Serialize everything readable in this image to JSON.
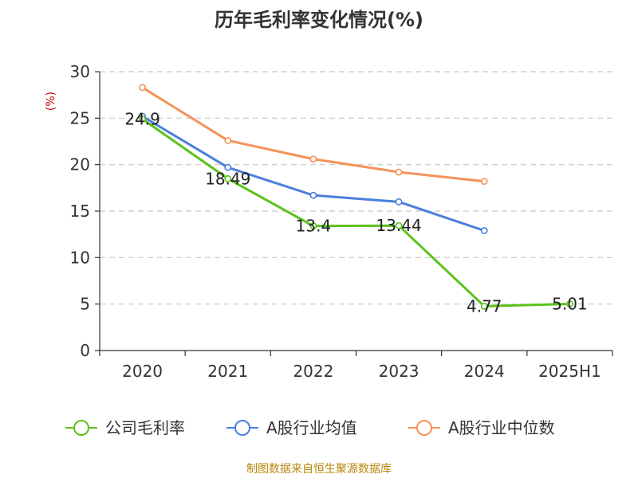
{
  "chart_data": {
    "type": "line",
    "title": "历年毛利率变化情况(%)",
    "y_unit": "(%)",
    "categories": [
      "2020",
      "2021",
      "2022",
      "2023",
      "2024",
      "2025H1"
    ],
    "ylim": [
      0,
      30
    ],
    "yticks": [
      0,
      5,
      10,
      15,
      20,
      25,
      30
    ],
    "grid": true,
    "legend_position": "bottom",
    "series": [
      {
        "name": "公司毛利率",
        "color": "#5cc21c",
        "values": [
          24.9,
          18.49,
          13.4,
          13.44,
          4.77,
          5.01
        ],
        "labels": [
          "24.9",
          "18.49",
          "13.4",
          "13.44",
          "4.77",
          "5.01"
        ]
      },
      {
        "name": "A股行业均值",
        "color": "#4a7fdc",
        "values": [
          25.2,
          19.7,
          16.7,
          16.0,
          12.9,
          null
        ]
      },
      {
        "name": "A股行业中位数",
        "color": "#f4925a",
        "values": [
          28.3,
          22.6,
          20.6,
          19.2,
          18.2,
          null
        ]
      }
    ],
    "source": "制图数据来自恒生聚源数据库"
  }
}
